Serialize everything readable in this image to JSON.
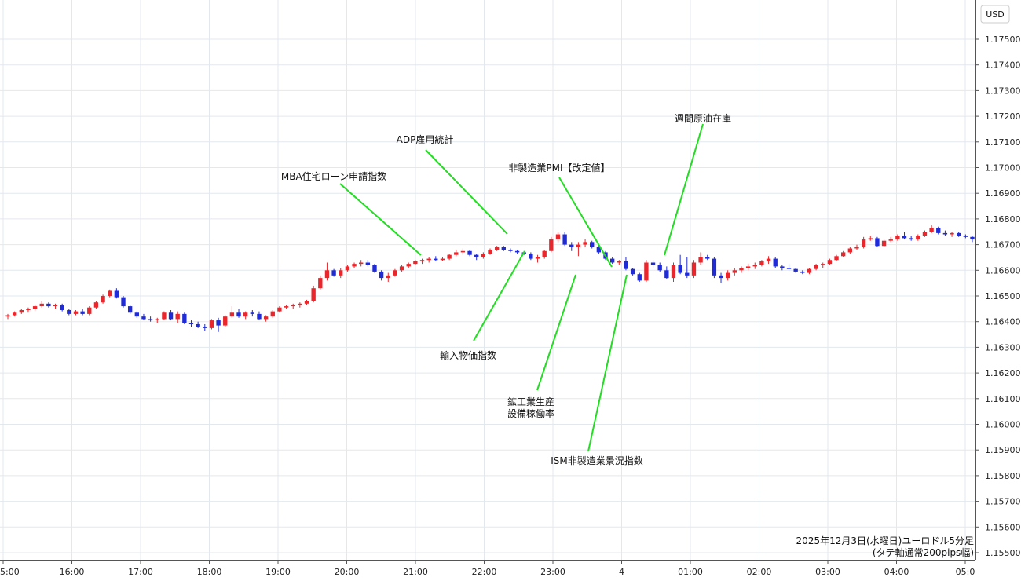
{
  "chart_data": {
    "type": "candlestick",
    "title": "",
    "currency": "USD",
    "caption_line1": "2025年12月3日(水曜日)ユーロドル5分足",
    "caption_line2": "(タテ軸通常200pips幅)",
    "ylim": [
      1.155,
      1.176
    ],
    "x_ticks": [
      "5:00",
      "16:00",
      "17:00",
      "18:00",
      "19:00",
      "20:00",
      "21:00",
      "22:00",
      "23:00",
      "4",
      "01:00",
      "02:00",
      "03:00",
      "04:00",
      "05:0"
    ],
    "y_ticks": [
      "1.17500",
      "1.17400",
      "1.17300",
      "1.17200",
      "1.17100",
      "1.17000",
      "1.16900",
      "1.16800",
      "1.16700",
      "1.16600",
      "1.16500",
      "1.16400",
      "1.16300",
      "1.16200",
      "1.16100",
      "1.16000",
      "1.15900",
      "1.15800",
      "1.15700",
      "1.15600",
      "1.15500"
    ],
    "grid": true,
    "up_color": "#e8262b",
    "down_color": "#1f2bd6",
    "annotation_color": "#22dd22",
    "candles": [
      [
        1.1642,
        1.1643,
        1.1641,
        1.16425
      ],
      [
        1.16425,
        1.1644,
        1.1642,
        1.16435
      ],
      [
        1.16435,
        1.1645,
        1.1643,
        1.16445
      ],
      [
        1.16445,
        1.16455,
        1.16435,
        1.1645
      ],
      [
        1.1645,
        1.16465,
        1.16445,
        1.1646
      ],
      [
        1.1646,
        1.1648,
        1.16455,
        1.1647
      ],
      [
        1.1647,
        1.16475,
        1.16455,
        1.1646
      ],
      [
        1.1646,
        1.1647,
        1.1645,
        1.16465
      ],
      [
        1.16465,
        1.1647,
        1.1644,
        1.16445
      ],
      [
        1.16445,
        1.1645,
        1.16425,
        1.1643
      ],
      [
        1.1643,
        1.16445,
        1.16425,
        1.1644
      ],
      [
        1.1644,
        1.1645,
        1.16425,
        1.1643
      ],
      [
        1.1643,
        1.1646,
        1.16425,
        1.16455
      ],
      [
        1.16455,
        1.1648,
        1.1645,
        1.16475
      ],
      [
        1.16475,
        1.16505,
        1.1647,
        1.165
      ],
      [
        1.165,
        1.16525,
        1.16495,
        1.1652
      ],
      [
        1.1652,
        1.1653,
        1.1649,
        1.16495
      ],
      [
        1.16495,
        1.165,
        1.16455,
        1.1646
      ],
      [
        1.1646,
        1.16465,
        1.1643,
        1.16435
      ],
      [
        1.16435,
        1.1644,
        1.16415,
        1.1642
      ],
      [
        1.1642,
        1.1643,
        1.16405,
        1.1641
      ],
      [
        1.1641,
        1.1642,
        1.164,
        1.16405
      ],
      [
        1.16405,
        1.16415,
        1.16395,
        1.1641
      ],
      [
        1.1641,
        1.1644,
        1.16405,
        1.16435
      ],
      [
        1.16435,
        1.16445,
        1.16405,
        1.1641
      ],
      [
        1.1641,
        1.1644,
        1.16395,
        1.1643
      ],
      [
        1.1643,
        1.16435,
        1.1639,
        1.16395
      ],
      [
        1.16395,
        1.16405,
        1.1638,
        1.1639
      ],
      [
        1.1639,
        1.164,
        1.16375,
        1.1638
      ],
      [
        1.1638,
        1.1639,
        1.16365,
        1.16375
      ],
      [
        1.16375,
        1.1641,
        1.1637,
        1.16405
      ],
      [
        1.16405,
        1.16415,
        1.1636,
        1.16385
      ],
      [
        1.16385,
        1.16425,
        1.1638,
        1.1642
      ],
      [
        1.1642,
        1.1646,
        1.16415,
        1.16435
      ],
      [
        1.16435,
        1.1645,
        1.16415,
        1.1642
      ],
      [
        1.1642,
        1.1644,
        1.1641,
        1.16435
      ],
      [
        1.16435,
        1.16445,
        1.1642,
        1.1643
      ],
      [
        1.1643,
        1.1644,
        1.16405,
        1.1641
      ],
      [
        1.1641,
        1.16425,
        1.164,
        1.1642
      ],
      [
        1.1642,
        1.16445,
        1.16415,
        1.1644
      ],
      [
        1.1644,
        1.1646,
        1.16435,
        1.16455
      ],
      [
        1.16455,
        1.16465,
        1.1645,
        1.1646
      ],
      [
        1.1646,
        1.1647,
        1.1645,
        1.16465
      ],
      [
        1.16465,
        1.16475,
        1.16455,
        1.1647
      ],
      [
        1.1647,
        1.16485,
        1.16465,
        1.1648
      ],
      [
        1.1648,
        1.1654,
        1.16475,
        1.1653
      ],
      [
        1.1653,
        1.1658,
        1.16525,
        1.1657
      ],
      [
        1.1657,
        1.1663,
        1.1656,
        1.166
      ],
      [
        1.166,
        1.16605,
        1.16575,
        1.1658
      ],
      [
        1.1658,
        1.1661,
        1.1657,
        1.166
      ],
      [
        1.166,
        1.1662,
        1.16595,
        1.16615
      ],
      [
        1.16615,
        1.1663,
        1.1661,
        1.16625
      ],
      [
        1.16625,
        1.1664,
        1.16615,
        1.1663
      ],
      [
        1.1663,
        1.1664,
        1.16615,
        1.1662
      ],
      [
        1.1662,
        1.16625,
        1.1659,
        1.16595
      ],
      [
        1.16595,
        1.166,
        1.1656,
        1.1657
      ],
      [
        1.1657,
        1.1659,
        1.16555,
        1.1658
      ],
      [
        1.1658,
        1.16605,
        1.16575,
        1.166
      ],
      [
        1.166,
        1.1662,
        1.16595,
        1.16615
      ],
      [
        1.16615,
        1.1663,
        1.1661,
        1.16625
      ],
      [
        1.16625,
        1.1664,
        1.1662,
        1.16635
      ],
      [
        1.16635,
        1.16645,
        1.16625,
        1.1664
      ],
      [
        1.1664,
        1.1665,
        1.1663,
        1.16645
      ],
      [
        1.16645,
        1.16655,
        1.16635,
        1.1664
      ],
      [
        1.1664,
        1.1665,
        1.16635,
        1.16645
      ],
      [
        1.16645,
        1.16665,
        1.1664,
        1.1666
      ],
      [
        1.1666,
        1.1668,
        1.16655,
        1.1667
      ],
      [
        1.1667,
        1.16685,
        1.1666,
        1.16675
      ],
      [
        1.16675,
        1.1668,
        1.16655,
        1.1666
      ],
      [
        1.1666,
        1.16665,
        1.1664,
        1.1665
      ],
      [
        1.1665,
        1.1667,
        1.16645,
        1.16665
      ],
      [
        1.16665,
        1.16685,
        1.1666,
        1.1668
      ],
      [
        1.1668,
        1.16695,
        1.16675,
        1.1669
      ],
      [
        1.1669,
        1.16695,
        1.16675,
        1.1668
      ],
      [
        1.1668,
        1.16685,
        1.1667,
        1.16675
      ],
      [
        1.16675,
        1.1668,
        1.16665,
        1.1667
      ],
      [
        1.1667,
        1.16675,
        1.1666,
        1.16665
      ],
      [
        1.16665,
        1.1667,
        1.1664,
        1.16645
      ],
      [
        1.16645,
        1.1666,
        1.1663,
        1.1665
      ],
      [
        1.1665,
        1.1668,
        1.16645,
        1.16675
      ],
      [
        1.16675,
        1.1673,
        1.1667,
        1.1672
      ],
      [
        1.1672,
        1.1675,
        1.1671,
        1.1674
      ],
      [
        1.1674,
        1.1675,
        1.16695,
        1.167
      ],
      [
        1.167,
        1.1671,
        1.16675,
        1.1669
      ],
      [
        1.1669,
        1.1671,
        1.16655,
        1.167
      ],
      [
        1.167,
        1.1672,
        1.1669,
        1.1671
      ],
      [
        1.1671,
        1.16715,
        1.16685,
        1.1669
      ],
      [
        1.1669,
        1.16695,
        1.16665,
        1.1667
      ],
      [
        1.1667,
        1.16675,
        1.1664,
        1.16645
      ],
      [
        1.16645,
        1.1665,
        1.16625,
        1.1663
      ],
      [
        1.1663,
        1.1664,
        1.1662,
        1.16635
      ],
      [
        1.16635,
        1.1665,
        1.166,
        1.16605
      ],
      [
        1.16605,
        1.1661,
        1.1658,
        1.16585
      ],
      [
        1.16585,
        1.1659,
        1.16555,
        1.1656
      ],
      [
        1.1656,
        1.1664,
        1.16555,
        1.1663
      ],
      [
        1.1663,
        1.1664,
        1.1661,
        1.1662
      ],
      [
        1.1662,
        1.1663,
        1.16595,
        1.166
      ],
      [
        1.166,
        1.16615,
        1.16565,
        1.1657
      ],
      [
        1.1657,
        1.1663,
        1.16555,
        1.1662
      ],
      [
        1.1662,
        1.1666,
        1.16585,
        1.1659
      ],
      [
        1.1659,
        1.1665,
        1.1657,
        1.1658
      ],
      [
        1.1658,
        1.1664,
        1.1657,
        1.1663
      ],
      [
        1.1663,
        1.1667,
        1.1662,
        1.1665
      ],
      [
        1.1665,
        1.1666,
        1.1664,
        1.16645
      ],
      [
        1.16645,
        1.1665,
        1.1657,
        1.1658
      ],
      [
        1.1658,
        1.1659,
        1.1655,
        1.1657
      ],
      [
        1.1657,
        1.166,
        1.1656,
        1.1659
      ],
      [
        1.1659,
        1.1661,
        1.1658,
        1.166
      ],
      [
        1.166,
        1.16615,
        1.1659,
        1.1661
      ],
      [
        1.1661,
        1.16625,
        1.166,
        1.16615
      ],
      [
        1.16615,
        1.1663,
        1.16605,
        1.1662
      ],
      [
        1.1662,
        1.1664,
        1.16615,
        1.16635
      ],
      [
        1.16635,
        1.16655,
        1.16625,
        1.16645
      ],
      [
        1.16645,
        1.1665,
        1.1661,
        1.16615
      ],
      [
        1.16615,
        1.1662,
        1.166,
        1.1661
      ],
      [
        1.1661,
        1.16625,
        1.166,
        1.16605
      ],
      [
        1.16605,
        1.1661,
        1.1659,
        1.16595
      ],
      [
        1.16595,
        1.166,
        1.16585,
        1.1659
      ],
      [
        1.1659,
        1.1661,
        1.16585,
        1.16605
      ],
      [
        1.16605,
        1.16625,
        1.166,
        1.1662
      ],
      [
        1.1662,
        1.1663,
        1.1661,
        1.16625
      ],
      [
        1.16625,
        1.16645,
        1.1662,
        1.1664
      ],
      [
        1.1664,
        1.1666,
        1.16635,
        1.16655
      ],
      [
        1.16655,
        1.16675,
        1.1665,
        1.1667
      ],
      [
        1.1667,
        1.1669,
        1.16665,
        1.16685
      ],
      [
        1.16685,
        1.167,
        1.1668,
        1.1669
      ],
      [
        1.1669,
        1.1673,
        1.16685,
        1.1672
      ],
      [
        1.1672,
        1.16735,
        1.16715,
        1.16725
      ],
      [
        1.16725,
        1.1673,
        1.1669,
        1.16695
      ],
      [
        1.16695,
        1.1672,
        1.1669,
        1.16715
      ],
      [
        1.16715,
        1.1673,
        1.1671,
        1.1672
      ],
      [
        1.1672,
        1.1674,
        1.16715,
        1.16735
      ],
      [
        1.16735,
        1.1675,
        1.1672,
        1.16725
      ],
      [
        1.16725,
        1.16735,
        1.16715,
        1.1672
      ],
      [
        1.1672,
        1.1674,
        1.16715,
        1.16735
      ],
      [
        1.16735,
        1.16755,
        1.1673,
        1.1675
      ],
      [
        1.1675,
        1.16775,
        1.16745,
        1.16765
      ],
      [
        1.16765,
        1.1677,
        1.1674,
        1.16745
      ],
      [
        1.16745,
        1.16755,
        1.16735,
        1.1674
      ],
      [
        1.1674,
        1.1675,
        1.1673,
        1.16745
      ],
      [
        1.16745,
        1.1675,
        1.1673,
        1.16735
      ],
      [
        1.16735,
        1.1674,
        1.16725,
        1.1673
      ],
      [
        1.1673,
        1.16735,
        1.1671,
        1.1672
      ]
    ],
    "annotations": [
      {
        "label": "MBA住宅ローン申請指数",
        "line": [
          [
            433,
            234
          ],
          [
            536,
            325
          ]
        ],
        "text_pos": [
          425,
          229
        ]
      },
      {
        "label": "ADP雇用統計",
        "line": [
          [
            542,
            191
          ],
          [
            646,
            298
          ]
        ],
        "text_pos": [
          541,
          182
        ]
      },
      {
        "label": "非製造業PMI【改定値】",
        "line": [
          [
            712,
            226
          ],
          [
            779,
            340
          ]
        ],
        "text_pos": [
          712,
          218
        ]
      },
      {
        "label": "週間原油在庫",
        "line": [
          [
            895,
            158
          ],
          [
            846,
            325
          ]
        ],
        "text_pos": [
          895,
          155
        ]
      },
      {
        "label": "輸入物価指数",
        "line": [
          [
            603,
            434
          ],
          [
            668,
            320
          ]
        ],
        "text_pos": [
          596,
          457
        ]
      },
      {
        "label": "鉱工業生産",
        "label2": "設備稼働率",
        "line": [
          [
            684,
            497
          ],
          [
            733,
            350
          ]
        ],
        "text_pos": [
          676,
          516
        ]
      },
      {
        "label": "ISM非製造業景況指数",
        "line": [
          [
            749,
            575
          ],
          [
            798,
            350
          ]
        ],
        "text_pos": [
          760,
          591
        ]
      }
    ]
  }
}
